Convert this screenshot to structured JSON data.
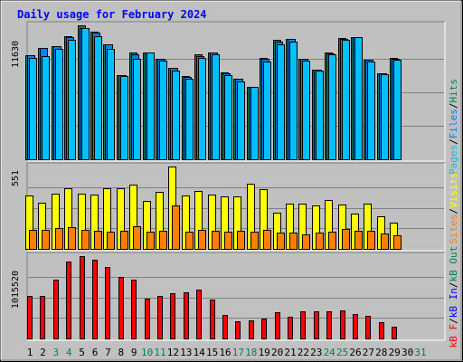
{
  "chart_data": [
    {
      "type": "bar",
      "title": "Daily usage for February 2024",
      "panel": "hits-files-pages",
      "ymax_label": "11630",
      "ylim": [
        0,
        11630
      ],
      "legend_parts": [
        "Pages",
        "Files",
        "Hits"
      ],
      "legend_colors": [
        "#00c0ff",
        "#0080ff",
        "#00805c"
      ],
      "series": [
        {
          "name": "Hits",
          "color": "#00805c",
          "values": [
            9010,
            9680,
            9830,
            10720,
            11630,
            11060,
            10000,
            7310,
            9260,
            9310,
            8710,
            7950,
            7260,
            9090,
            9310,
            7510,
            6980,
            6300,
            8770,
            10350,
            10420,
            8700,
            7810,
            9240,
            10500,
            10580,
            8660,
            7500,
            8780
          ]
        },
        {
          "name": "Files",
          "color": "#0080ff",
          "values": [
            9010,
            9640,
            9830,
            10590,
            11370,
            10990,
            9960,
            7310,
            9110,
            9280,
            8710,
            7900,
            7170,
            8990,
            9240,
            7470,
            6980,
            6250,
            8700,
            10180,
            10420,
            8700,
            7810,
            9220,
            10480,
            10580,
            8650,
            7480,
            8740
          ]
        },
        {
          "name": "Pages",
          "color": "#00c0ff",
          "values": [
            8800,
            8960,
            9590,
            10340,
            11370,
            10650,
            9610,
            7240,
            8750,
            9240,
            8600,
            7700,
            6990,
            8790,
            9140,
            7300,
            6790,
            6250,
            8510,
            9960,
            10180,
            8590,
            7740,
            9100,
            10370,
            10580,
            8470,
            7380,
            8670
          ]
        }
      ]
    },
    {
      "type": "bar",
      "panel": "visits-sites",
      "ymax_label": "551",
      "ylim": [
        0,
        551
      ],
      "legend_parts": [
        "Sites",
        "Visits"
      ],
      "legend_colors": [
        "#ff8000",
        "#ffff00"
      ],
      "series": [
        {
          "name": "Visits",
          "color": "#ffff00",
          "values": [
            360,
            310,
            370,
            405,
            370,
            365,
            405,
            405,
            430,
            320,
            380,
            550,
            360,
            390,
            365,
            350,
            350,
            435,
            400,
            240,
            300,
            300,
            290,
            325,
            295,
            235,
            300,
            220,
            175
          ]
        },
        {
          "name": "Sites",
          "color": "#ff8000",
          "values": [
            125,
            125,
            140,
            145,
            125,
            120,
            115,
            120,
            150,
            115,
            120,
            290,
            115,
            125,
            120,
            115,
            120,
            115,
            125,
            110,
            110,
            95,
            110,
            115,
            135,
            120,
            120,
            105,
            90
          ]
        }
      ]
    },
    {
      "type": "bar",
      "panel": "kb",
      "ymax_label": "1015520",
      "ylim": [
        0,
        1015520
      ],
      "legend_parts": [
        "kB F",
        "kB In",
        "kB Out"
      ],
      "legend_colors": [
        "#ff0000",
        "#0000ff",
        "#00805c"
      ],
      "series": [
        {
          "name": "kB F",
          "color": "#ff0000",
          "values": [
            530000,
            530000,
            720000,
            950000,
            1015520,
            970000,
            880000,
            760000,
            730000,
            490000,
            520000,
            560000,
            570000,
            600000,
            480000,
            290000,
            210000,
            220000,
            250000,
            320000,
            270000,
            330000,
            330000,
            340000,
            350000,
            300000,
            280000,
            200000,
            150000
          ]
        }
      ]
    }
  ],
  "x_labels": [
    "1",
    "2",
    "3",
    "4",
    "5",
    "6",
    "7",
    "8",
    "9",
    "10",
    "11",
    "12",
    "13",
    "14",
    "15",
    "16",
    "17",
    "18",
    "19",
    "20",
    "21",
    "22",
    "23",
    "24",
    "25",
    "26",
    "27",
    "28",
    "29",
    "30",
    "31"
  ],
  "weekend_days": [
    3,
    4,
    10,
    11,
    17,
    18,
    24,
    25,
    31
  ],
  "colors": {
    "weekday_label": "#000000",
    "weekend_label": "#00805c",
    "panel_bg": "#c0c0c0",
    "title": "#0000ff"
  }
}
